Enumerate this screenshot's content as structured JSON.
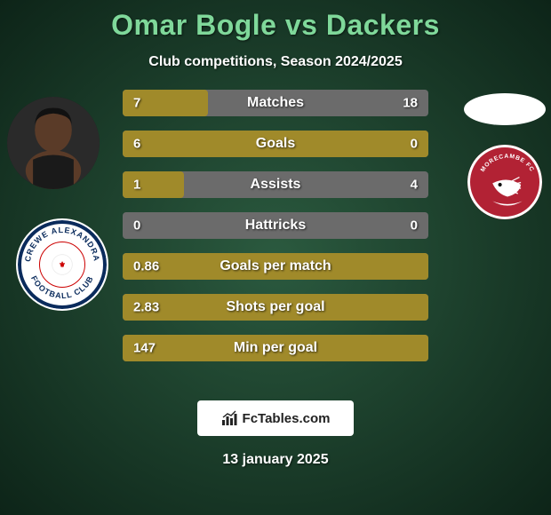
{
  "page": {
    "background_color": "#1a3a2a",
    "bg_gradient_from": "#2b5a3f",
    "bg_gradient_to": "#0d2418"
  },
  "header": {
    "title": "Omar Bogle vs Dackers",
    "title_color": "#7fd89a",
    "title_fontsize": 32,
    "subtitle": "Club competitions, Season 2024/2025",
    "subtitle_color": "#ffffff",
    "subtitle_fontsize": 16
  },
  "players": {
    "left": {
      "name": "Omar Bogle",
      "club": "Crewe Alexandra"
    },
    "right": {
      "name": "Dackers",
      "club": "Morecambe"
    }
  },
  "stats": {
    "row_bg_left": "#a08a2a",
    "row_bg_right": "#6b6b6b",
    "label_color": "#ffffff",
    "value_color": "#ffffff",
    "label_fontsize": 16,
    "value_fontsize": 15,
    "rows": [
      {
        "label": "Matches",
        "left": "7",
        "right": "18",
        "left_pct": 28,
        "right_pct": 72
      },
      {
        "label": "Goals",
        "left": "6",
        "right": "0",
        "left_pct": 100,
        "right_pct": 0
      },
      {
        "label": "Assists",
        "left": "1",
        "right": "4",
        "left_pct": 20,
        "right_pct": 80
      },
      {
        "label": "Hattricks",
        "left": "0",
        "right": "0",
        "left_pct": 0,
        "right_pct": 0
      },
      {
        "label": "Goals per match",
        "left": "0.86",
        "right": "",
        "left_pct": 100,
        "right_pct": 0
      },
      {
        "label": "Shots per goal",
        "left": "2.83",
        "right": "",
        "left_pct": 100,
        "right_pct": 0
      },
      {
        "label": "Min per goal",
        "left": "147",
        "right": "",
        "left_pct": 100,
        "right_pct": 0
      }
    ]
  },
  "footer": {
    "brand": "FcTables.com",
    "date": "13 january 2025",
    "date_color": "#ffffff"
  },
  "club_badges": {
    "crewe": {
      "ring_color": "#0a2b5c",
      "accent": "#c00020"
    },
    "morecambe": {
      "bg": "#b22234",
      "text": "MORECAMBE FC"
    }
  }
}
